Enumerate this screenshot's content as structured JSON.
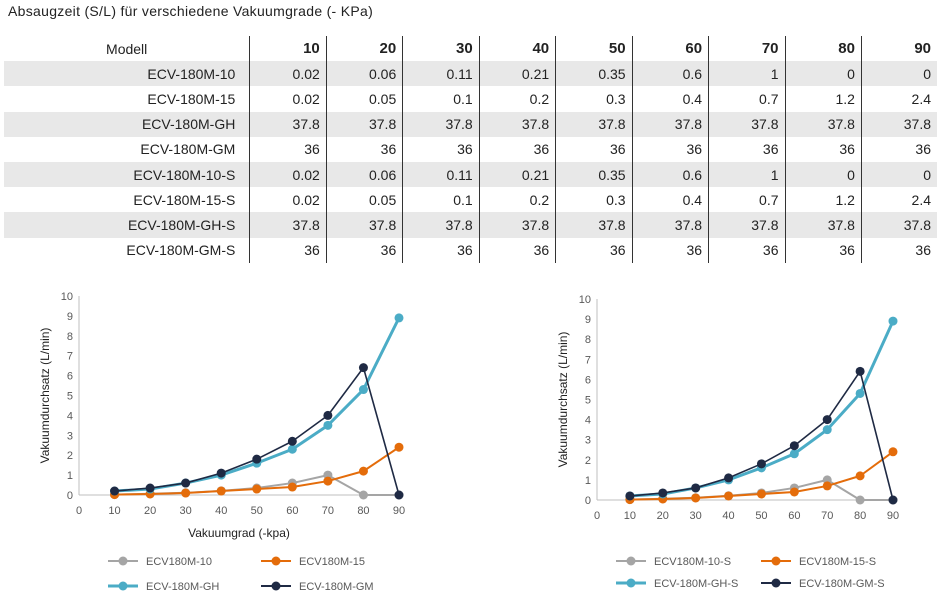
{
  "page": {
    "title": "Absaugzeit (S/L) für verschiedene Vakuumgrade (- KPa)"
  },
  "table": {
    "model_header": "Modell",
    "columns": [
      "10",
      "20",
      "30",
      "40",
      "50",
      "60",
      "70",
      "80",
      "90"
    ],
    "rows": [
      {
        "model": "ECV-180M-10",
        "values": [
          "0.02",
          "0.06",
          "0.11",
          "0.21",
          "0.35",
          "0.6",
          "1",
          "0",
          "0"
        ]
      },
      {
        "model": "ECV-180M-15",
        "values": [
          "0.02",
          "0.05",
          "0.1",
          "0.2",
          "0.3",
          "0.4",
          "0.7",
          "1.2",
          "2.4"
        ]
      },
      {
        "model": "ECV-180M-GH",
        "values": [
          "37.8",
          "37.8",
          "37.8",
          "37.8",
          "37.8",
          "37.8",
          "37.8",
          "37.8",
          "37.8"
        ]
      },
      {
        "model": "ECV-180M-GM",
        "values": [
          "36",
          "36",
          "36",
          "36",
          "36",
          "36",
          "36",
          "36",
          "36"
        ]
      },
      {
        "model": "ECV-180M-10-S",
        "values": [
          "0.02",
          "0.06",
          "0.11",
          "0.21",
          "0.35",
          "0.6",
          "1",
          "0",
          "0"
        ]
      },
      {
        "model": "ECV-180M-15-S",
        "values": [
          "0.02",
          "0.05",
          "0.1",
          "0.2",
          "0.3",
          "0.4",
          "0.7",
          "1.2",
          "2.4"
        ]
      },
      {
        "model": "ECV-180M-GH-S",
        "values": [
          "37.8",
          "37.8",
          "37.8",
          "37.8",
          "37.8",
          "37.8",
          "37.8",
          "37.8",
          "37.8"
        ]
      },
      {
        "model": "ECV-180M-GM-S",
        "values": [
          "36",
          "36",
          "36",
          "36",
          "36",
          "36",
          "36",
          "36",
          "36"
        ]
      }
    ]
  },
  "chart_data": [
    {
      "type": "line",
      "xlabel": "Vakuumgrad (-kpa)",
      "ylabel": "Vakuumdurchsatz (L/min)",
      "xlim": [
        0,
        90
      ],
      "ylim": [
        0,
        10
      ],
      "xticks": [
        0,
        10,
        20,
        30,
        40,
        50,
        60,
        70,
        80,
        90
      ],
      "yticks": [
        0,
        1,
        2,
        3,
        4,
        5,
        6,
        7,
        8,
        9,
        10
      ],
      "grid": "none",
      "legend_position": "bottom",
      "x": [
        10,
        20,
        30,
        40,
        50,
        60,
        70,
        80,
        90
      ],
      "series": [
        {
          "name": "ECV180M-10",
          "color": "#a5a5a5",
          "values": [
            0.02,
            0.06,
            0.11,
            0.21,
            0.35,
            0.6,
            1,
            0,
            0
          ]
        },
        {
          "name": "ECV180M-15",
          "color": "#e46c0a",
          "values": [
            0.02,
            0.05,
            0.1,
            0.2,
            0.3,
            0.4,
            0.7,
            1.2,
            2.4
          ]
        },
        {
          "name": "ECV-180M-GH",
          "color": "#4bacc6",
          "values": [
            0.2,
            0.3,
            0.6,
            1.0,
            1.6,
            2.3,
            3.5,
            5.3,
            8.9
          ]
        },
        {
          "name": "ECV-180M-GM",
          "color": "#1f2a44",
          "values": [
            0.2,
            0.35,
            0.6,
            1.1,
            1.8,
            2.7,
            4.0,
            6.4,
            0
          ]
        }
      ]
    },
    {
      "type": "line",
      "xlabel": "",
      "ylabel": "Vakuumdurchsatz (L/min)",
      "xlim": [
        0,
        90
      ],
      "ylim": [
        0,
        10
      ],
      "xticks": [
        0,
        10,
        20,
        30,
        40,
        50,
        60,
        70,
        80,
        90
      ],
      "yticks": [
        0,
        1,
        2,
        3,
        4,
        5,
        6,
        7,
        8,
        9,
        10
      ],
      "grid": "none",
      "legend_position": "bottom",
      "x": [
        10,
        20,
        30,
        40,
        50,
        60,
        70,
        80,
        90
      ],
      "series": [
        {
          "name": "ECV180M-10-S",
          "color": "#a5a5a5",
          "values": [
            0.02,
            0.06,
            0.11,
            0.21,
            0.35,
            0.6,
            1,
            0,
            0
          ]
        },
        {
          "name": "ECV180M-15-S",
          "color": "#e46c0a",
          "values": [
            0.02,
            0.05,
            0.1,
            0.2,
            0.3,
            0.4,
            0.7,
            1.2,
            2.4
          ]
        },
        {
          "name": "ECV-180M-GH-S",
          "color": "#4bacc6",
          "values": [
            0.2,
            0.3,
            0.6,
            1.0,
            1.6,
            2.3,
            3.5,
            5.3,
            8.9
          ]
        },
        {
          "name": "ECV-180M-GM-S",
          "color": "#1f2a44",
          "values": [
            0.2,
            0.35,
            0.6,
            1.1,
            1.8,
            2.7,
            4.0,
            6.4,
            0
          ]
        }
      ]
    }
  ]
}
